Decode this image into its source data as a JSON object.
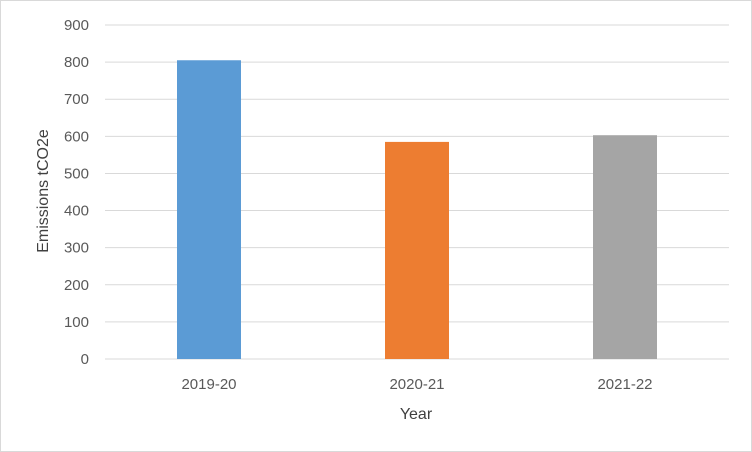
{
  "chart_data": {
    "type": "bar",
    "title": "",
    "xlabel": "Year",
    "ylabel": "Emissions tCO2e",
    "categories": [
      "2019-20",
      "2020-21",
      "2021-22"
    ],
    "values": [
      805,
      585,
      603
    ],
    "bar_colors": [
      "#5b9bd5",
      "#ed7d31",
      "#a5a5a5"
    ],
    "ylim": [
      0,
      900
    ],
    "yticks": [
      0,
      100,
      200,
      300,
      400,
      500,
      600,
      700,
      800,
      900
    ],
    "grid": true,
    "legend": "none"
  }
}
